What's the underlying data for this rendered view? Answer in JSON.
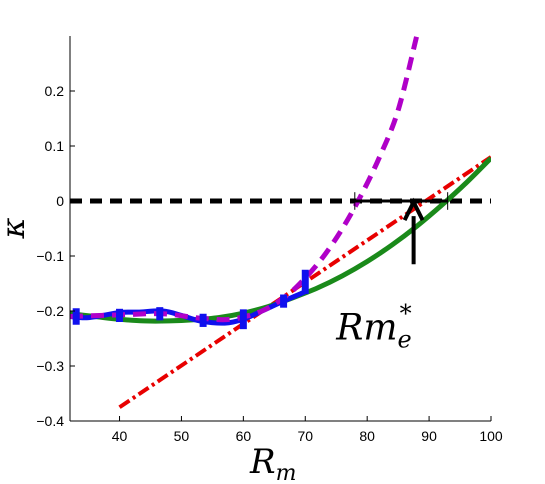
{
  "chart_data": {
    "type": "line",
    "xlabel": "R",
    "xlabel_sub": "m",
    "ylabel": "κ",
    "xlim": [
      32,
      100
    ],
    "ylim": [
      -0.4,
      0.3
    ],
    "xticks": [
      40,
      50,
      60,
      70,
      80,
      90,
      100
    ],
    "yticks": [
      -0.4,
      -0.3,
      -0.2,
      -0.1,
      0,
      0.1,
      0.2
    ],
    "ytick_labels": [
      "−0.4",
      "−0.3",
      "−0.2",
      "−0.1",
      "0",
      "0.1",
      "0.2"
    ],
    "grid": false,
    "series": [
      {
        "style": "dashed-thick",
        "color": "#000000",
        "x": [
          32,
          100
        ],
        "y": [
          0,
          0
        ]
      },
      {
        "style": "dashed",
        "color": "#b000c8",
        "x": [
          32,
          40,
          47,
          53,
          58,
          63,
          67,
          70,
          73,
          76,
          79,
          82,
          85,
          88
        ],
        "y": [
          -0.21,
          -0.207,
          -0.205,
          -0.213,
          -0.215,
          -0.2,
          -0.172,
          -0.14,
          -0.1,
          -0.05,
          0.01,
          0.08,
          0.165,
          0.3
        ]
      },
      {
        "style": "dash-dot",
        "color": "#e80000",
        "x": [
          40,
          100
        ],
        "y": [
          -0.375,
          0.08
        ]
      },
      {
        "style": "solid-thick",
        "color": "#1a8a1a",
        "x": [
          32,
          36,
          40,
          44,
          48,
          52,
          56,
          60,
          64,
          68,
          72,
          76,
          80,
          84,
          88,
          92,
          96,
          100
        ],
        "y": [
          -0.205,
          -0.21,
          -0.215,
          -0.218,
          -0.218,
          -0.216,
          -0.212,
          -0.204,
          -0.192,
          -0.176,
          -0.158,
          -0.136,
          -0.11,
          -0.08,
          -0.046,
          -0.008,
          0.033,
          0.078
        ]
      },
      {
        "style": "solid-thick",
        "color": "#1010ee",
        "x": [
          32,
          35,
          40,
          43,
          47,
          50,
          53,
          57,
          60,
          63,
          66.5,
          70
        ],
        "y": [
          -0.21,
          -0.212,
          -0.203,
          -0.202,
          -0.2,
          -0.208,
          -0.218,
          -0.222,
          -0.215,
          -0.2,
          -0.182,
          -0.165
        ]
      }
    ],
    "error_bars": {
      "color": "#1010ee",
      "points": [
        {
          "x": 33,
          "y": -0.21,
          "err": 0.015
        },
        {
          "x": 40,
          "y": -0.208,
          "err": 0.012
        },
        {
          "x": 46.5,
          "y": -0.205,
          "err": 0.012
        },
        {
          "x": 53.5,
          "y": -0.217,
          "err": 0.012
        },
        {
          "x": 60,
          "y": -0.215,
          "err": 0.018
        },
        {
          "x": 66.5,
          "y": -0.182,
          "err": 0.012
        },
        {
          "x": 70,
          "y": -0.147,
          "err": 0.022
        }
      ]
    },
    "interval": {
      "x_start": 78,
      "x_end": 93,
      "y": 0,
      "tick_half_height": 0.016
    },
    "arrow": {
      "x": 87.5,
      "y_from": -0.115,
      "y_to": -0.002
    },
    "annotation": {
      "text": "Rm",
      "sup": "*",
      "sub": "e",
      "x": 75,
      "y": -0.23
    }
  }
}
